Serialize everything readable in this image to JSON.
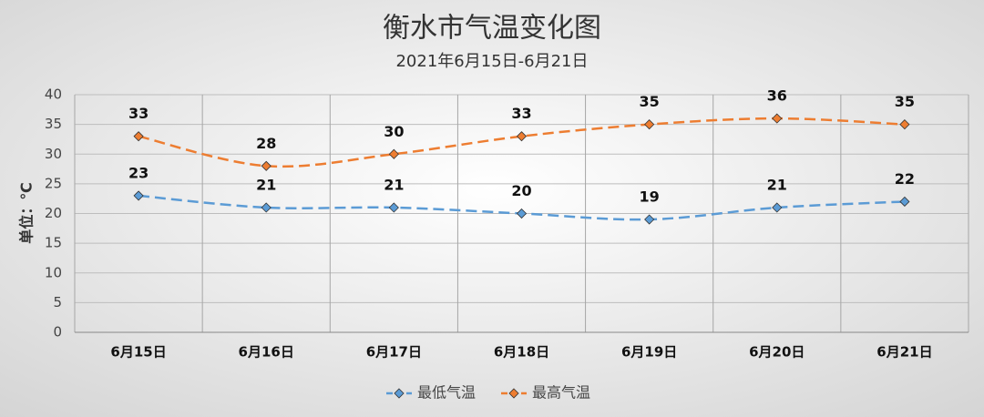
{
  "chart_data": {
    "type": "line",
    "title": "衡水市气温变化图",
    "subtitle": "2021年6月15日-6月21日",
    "y_label": "单位：℃",
    "categories": [
      "6月15日",
      "6月16日",
      "6月17日",
      "6月18日",
      "6月19日",
      "6月20日",
      "6月21日"
    ],
    "series": [
      {
        "name": "最低气温",
        "color": "#5b9bd5",
        "values": [
          23,
          21,
          21,
          20,
          19,
          21,
          22
        ]
      },
      {
        "name": "最高气温",
        "color": "#ed7d31",
        "values": [
          33,
          28,
          30,
          33,
          35,
          36,
          35
        ]
      }
    ],
    "ylim": [
      0,
      40
    ],
    "yticks": [
      0,
      5,
      10,
      15,
      20,
      25,
      30,
      35,
      40
    ],
    "grid": true,
    "legend": "bottom"
  }
}
